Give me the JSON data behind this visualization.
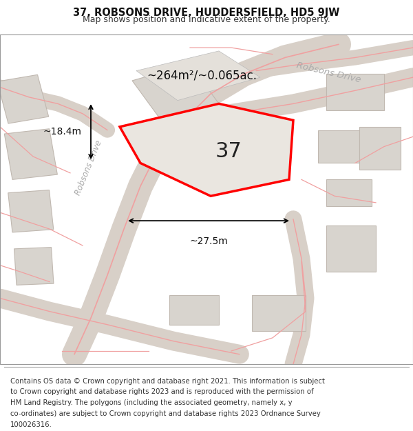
{
  "title_line1": "37, ROBSONS DRIVE, HUDDERSFIELD, HD5 9JW",
  "title_line2": "Map shows position and indicative extent of the property.",
  "footer_lines": [
    "Contains OS data © Crown copyright and database right 2021. This information is subject",
    "to Crown copyright and database rights 2023 and is reproduced with the permission of",
    "HM Land Registry. The polygons (including the associated geometry, namely x, y",
    "co-ordinates) are subject to Crown copyright and database rights 2023 Ordnance Survey",
    "100026316."
  ],
  "bg_color": "#ede9e3",
  "road_color": "#d8d0c8",
  "building_fill": "#d8d4ce",
  "building_stroke": "#c0b8b0",
  "subject_fill": "#eae6e0",
  "subject_stroke": "#ff0000",
  "road_line_color": "#f0a0a0",
  "area_text": "~264m²/~0.065ac.",
  "number_text": "37",
  "dim_width": "~27.5m",
  "dim_height": "~18.4m",
  "street_name": "Robsons Drive",
  "figsize": [
    6.0,
    6.25
  ],
  "dpi": 100
}
